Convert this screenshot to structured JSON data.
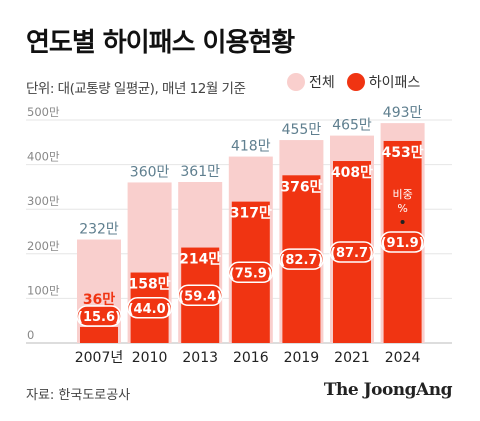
{
  "title": "연도별 하이패스 이용현황",
  "unit_note": "단위: 대(교통량 일평균), 매년 12월 기준",
  "source": "자료: 한국도로공사",
  "brand": "The JoongAng",
  "colors": {
    "total": "#f9cfcd",
    "hipass": "#f03412",
    "total_label": "#5f7f8f",
    "axis": "#888888",
    "grid": "#e6e6e6"
  },
  "chart_data": {
    "type": "bar",
    "categories": [
      "2007년",
      "2010",
      "2013",
      "2016",
      "2019",
      "2021",
      "2024"
    ],
    "series": [
      {
        "name": "전체",
        "values": [
          232,
          360,
          361,
          418,
          455,
          465,
          493
        ],
        "labels": [
          "232만",
          "360만",
          "361만",
          "418만",
          "455만",
          "465만",
          "493만"
        ]
      },
      {
        "name": "하이패스",
        "values": [
          36,
          158,
          214,
          317,
          376,
          408,
          453
        ],
        "labels": [
          "36만",
          "158만",
          "214만",
          "317만",
          "376만",
          "408만",
          "453만"
        ]
      }
    ],
    "share_labels": [
      "(15.6)",
      "(44.0)",
      "(59.4)",
      "(75.9)",
      "(82.7)",
      "(87.7)",
      "(91.9)"
    ],
    "share_note": "비중 %",
    "yticks": [
      0,
      100,
      200,
      300,
      400,
      500
    ],
    "ytick_labels": [
      "0",
      "100만",
      "200만",
      "300만",
      "400만",
      "500만"
    ],
    "ylim": [
      0,
      500
    ],
    "grid": true,
    "legend_position": "top-right"
  }
}
